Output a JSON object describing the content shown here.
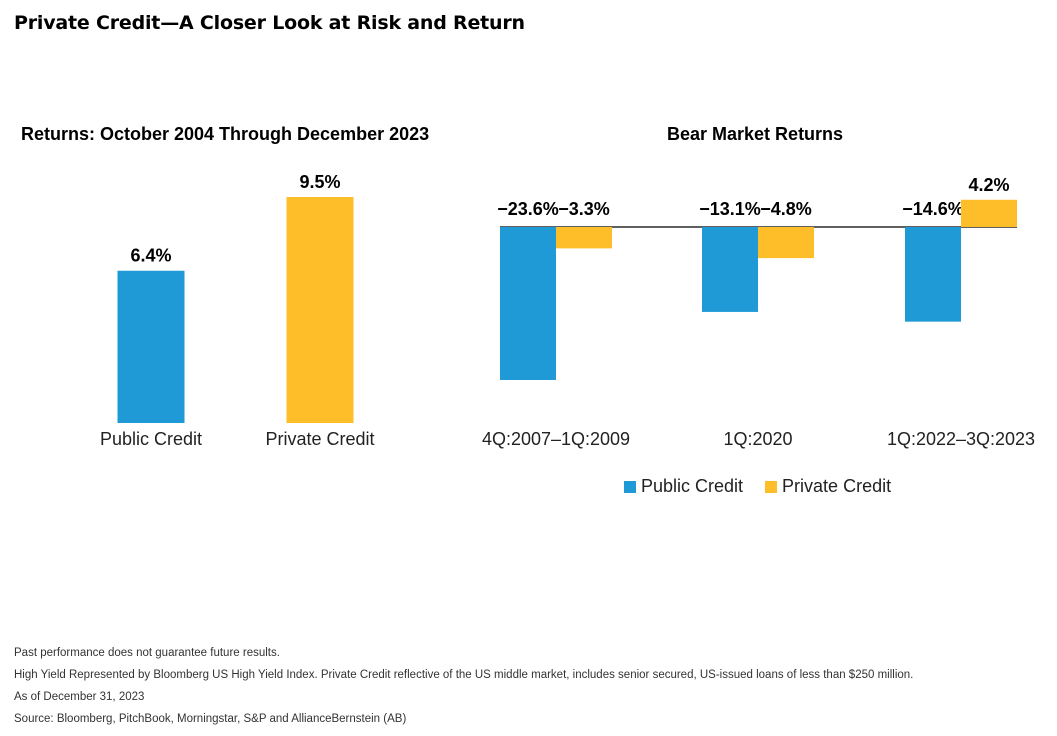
{
  "title": "Private Credit—A Closer Look at Risk and Return",
  "colors": {
    "public": "#1F9AD6",
    "private": "#FDBE2A"
  },
  "chart_data": [
    {
      "type": "bar",
      "title": "Returns: October 2004 Through December 2023",
      "categories": [
        "Public Credit",
        "Private Credit"
      ],
      "values": [
        6.4,
        9.5
      ],
      "value_labels": [
        "6.4%",
        "9.5%"
      ],
      "unit": "%",
      "grid": false
    },
    {
      "type": "bar",
      "title": "Bear Market Returns",
      "categories": [
        "4Q:2007–1Q:2009",
        "1Q:2020",
        "1Q:2022–3Q:2023"
      ],
      "series": [
        {
          "name": "Public Credit",
          "values": [
            -23.6,
            -13.1,
            -14.6
          ],
          "labels": [
            "−23.6%",
            "−13.1%",
            "−14.6%"
          ]
        },
        {
          "name": "Private Credit",
          "values": [
            -3.3,
            -4.8,
            4.2
          ],
          "labels": [
            "−3.3%",
            "−4.8%",
            "4.2%"
          ]
        }
      ],
      "unit": "%",
      "legend": "bottom",
      "grid": false
    }
  ],
  "footnotes": [
    "Past performance does not guarantee future results.",
    "High Yield Represented by Bloomberg US High Yield Index. Private Credit reflective of the US middle market, includes senior secured, US-issued loans of less than $250 million.",
    "As of December 31, 2023",
    "Source: Bloomberg, PitchBook, Morningstar, S&P and AllianceBernstein (AB)"
  ]
}
